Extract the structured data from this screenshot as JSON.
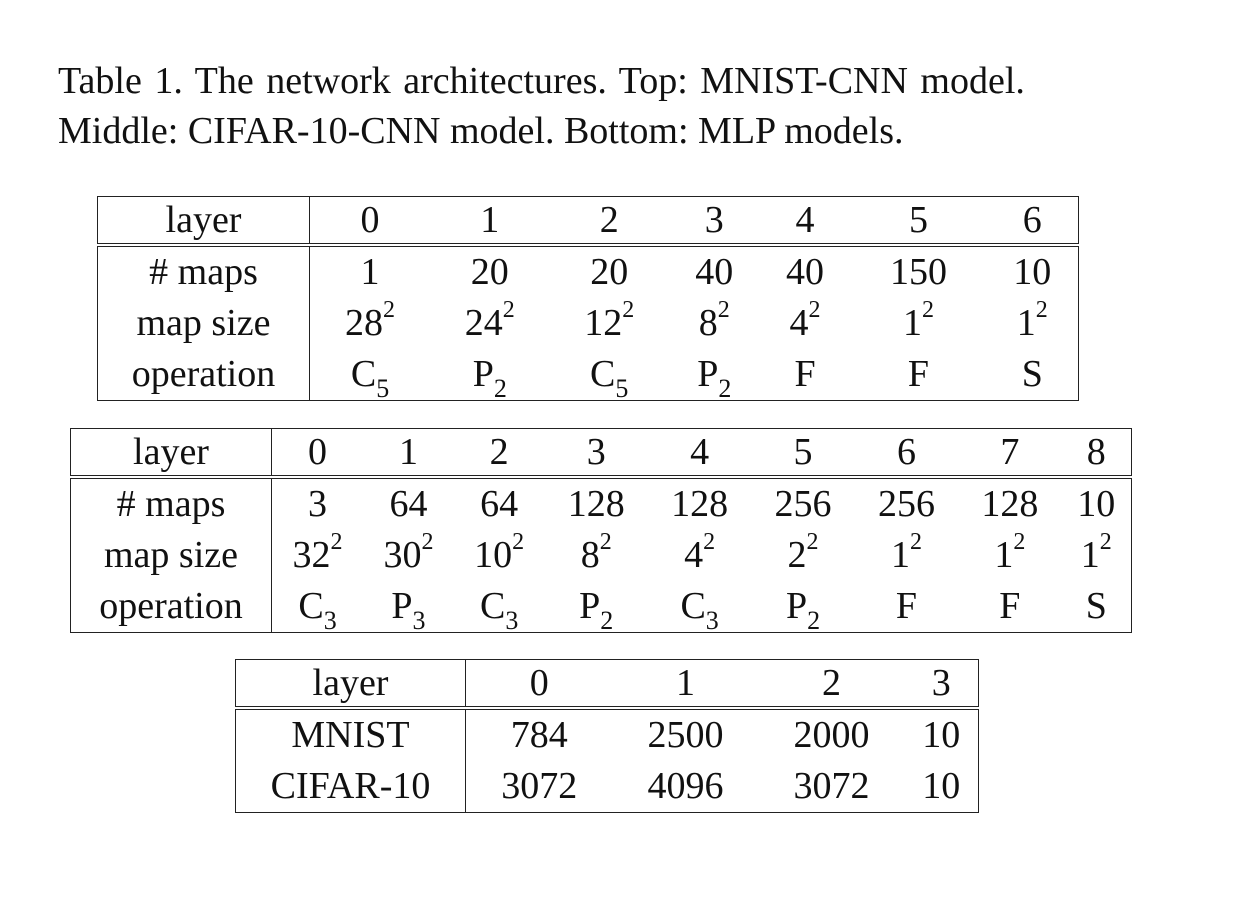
{
  "caption": {
    "line1": "Table 1. The network architectures.  Top:  MNIST-CNN model.",
    "line2": "Middle: CIFAR-10-CNN model. Bottom: MLP models."
  },
  "mnist_cnn": {
    "header_label": "layer",
    "layers": [
      "0",
      "1",
      "2",
      "3",
      "4",
      "5",
      "6"
    ],
    "rows": [
      {
        "label": "# maps",
        "cells": [
          {
            "base": "1"
          },
          {
            "base": "20"
          },
          {
            "base": "20"
          },
          {
            "base": "40"
          },
          {
            "base": "40"
          },
          {
            "base": "150"
          },
          {
            "base": "10"
          }
        ]
      },
      {
        "label": "map size",
        "cells": [
          {
            "base": "28",
            "sup": "2"
          },
          {
            "base": "24",
            "sup": "2"
          },
          {
            "base": "12",
            "sup": "2"
          },
          {
            "base": "8",
            "sup": "2"
          },
          {
            "base": "4",
            "sup": "2"
          },
          {
            "base": "1",
            "sup": "2"
          },
          {
            "base": "1",
            "sup": "2"
          }
        ]
      },
      {
        "label": "operation",
        "cells": [
          {
            "base": "C",
            "sub": "5"
          },
          {
            "base": "P",
            "sub": "2"
          },
          {
            "base": "C",
            "sub": "5"
          },
          {
            "base": "P",
            "sub": "2"
          },
          {
            "base": "F"
          },
          {
            "base": "F"
          },
          {
            "base": "S"
          }
        ]
      }
    ]
  },
  "cifar_cnn": {
    "header_label": "layer",
    "layers": [
      "0",
      "1",
      "2",
      "3",
      "4",
      "5",
      "6",
      "7",
      "8"
    ],
    "rows": [
      {
        "label": "# maps",
        "cells": [
          {
            "base": "3"
          },
          {
            "base": "64"
          },
          {
            "base": "64"
          },
          {
            "base": "128"
          },
          {
            "base": "128"
          },
          {
            "base": "256"
          },
          {
            "base": "256"
          },
          {
            "base": "128"
          },
          {
            "base": "10"
          }
        ]
      },
      {
        "label": "map size",
        "cells": [
          {
            "base": "32",
            "sup": "2"
          },
          {
            "base": "30",
            "sup": "2"
          },
          {
            "base": "10",
            "sup": "2"
          },
          {
            "base": "8",
            "sup": "2"
          },
          {
            "base": "4",
            "sup": "2"
          },
          {
            "base": "2",
            "sup": "2"
          },
          {
            "base": "1",
            "sup": "2"
          },
          {
            "base": "1",
            "sup": "2"
          },
          {
            "base": "1",
            "sup": "2"
          }
        ]
      },
      {
        "label": "operation",
        "cells": [
          {
            "base": "C",
            "sub": "3"
          },
          {
            "base": "P",
            "sub": "3"
          },
          {
            "base": "C",
            "sub": "3"
          },
          {
            "base": "P",
            "sub": "2"
          },
          {
            "base": "C",
            "sub": "3"
          },
          {
            "base": "P",
            "sub": "2"
          },
          {
            "base": "F"
          },
          {
            "base": "F"
          },
          {
            "base": "S"
          }
        ]
      }
    ]
  },
  "mlp": {
    "header_label": "layer",
    "layers": [
      "0",
      "1",
      "2",
      "3"
    ],
    "rows": [
      {
        "label": "MNIST",
        "cells": [
          {
            "base": "784"
          },
          {
            "base": "2500"
          },
          {
            "base": "2000"
          },
          {
            "base": "10"
          }
        ]
      },
      {
        "label": "CIFAR-10",
        "cells": [
          {
            "base": "3072"
          },
          {
            "base": "4096"
          },
          {
            "base": "3072"
          },
          {
            "base": "10"
          }
        ]
      }
    ]
  }
}
